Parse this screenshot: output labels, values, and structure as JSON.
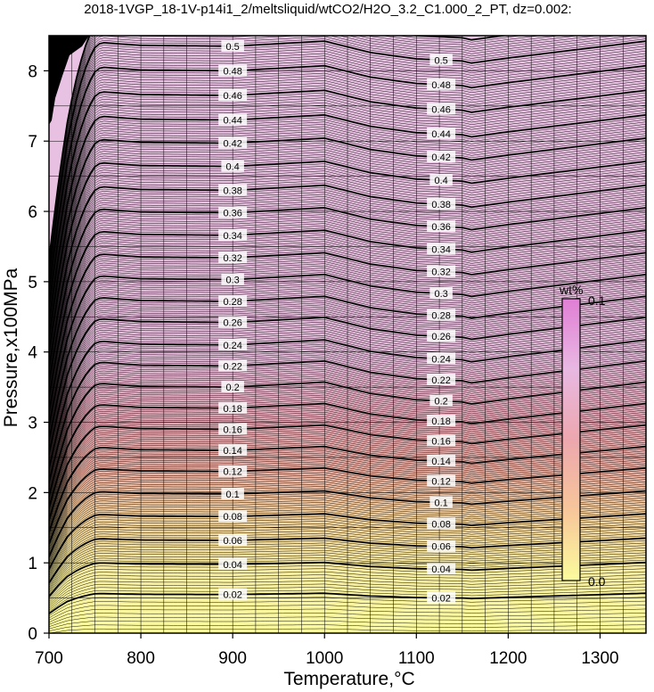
{
  "chart_data": {
    "type": "contour",
    "title": "2018-1VGP_18-1V-p14i1_2/meltsliquid/wtCO2/H2O_3.2_C1.000_2_PT, dz=0.002:",
    "xlabel": "Temperature,°C",
    "ylabel": "Pressure,x100MPa",
    "xlim": [
      700,
      1350
    ],
    "ylim": [
      0,
      8.5
    ],
    "x_ticks": [
      700,
      800,
      900,
      1000,
      1100,
      1200,
      1300
    ],
    "y_ticks": [
      0,
      1,
      2,
      3,
      4,
      5,
      6,
      7,
      8
    ],
    "x_tick_labels": [
      "700",
      "800",
      "900",
      "1000",
      "1100",
      "1200",
      "1300"
    ],
    "y_tick_labels": [
      "0",
      "1",
      "2",
      "3",
      "4",
      "5",
      "6",
      "7",
      "8"
    ],
    "grid": true,
    "contour_interval": 0.002,
    "labeled_levels": [
      0.02,
      0.04,
      0.06,
      0.08,
      0.1,
      0.12,
      0.14,
      0.16,
      0.18,
      0.2,
      0.22,
      0.24,
      0.26,
      0.28,
      0.3,
      0.32,
      0.34,
      0.36,
      0.38,
      0.4,
      0.42,
      0.44,
      0.46,
      0.48,
      0.5
    ],
    "labeled_level_texts": [
      "0.02",
      "0.04",
      "0.06",
      "0.08",
      "0.1",
      "0.12",
      "0.14",
      "0.16",
      "0.18",
      "0.2",
      "0.22",
      "0.24",
      "0.26",
      "0.28",
      "0.3",
      "0.32",
      "0.34",
      "0.36",
      "0.38",
      "0.4",
      "0.42",
      "0.44",
      "0.46",
      "0.48",
      "0.5"
    ],
    "level_pressure_at_900C": [
      0.55,
      0.98,
      1.32,
      1.66,
      1.98,
      2.3,
      2.6,
      2.9,
      3.2,
      3.5,
      3.8,
      4.1,
      4.42,
      4.72,
      5.03,
      5.34,
      5.66,
      5.98,
      6.3,
      6.64,
      6.97,
      7.3,
      7.65,
      8.0,
      8.35
    ],
    "profile_temperatures": [
      700,
      720,
      750,
      780,
      800,
      900,
      1000,
      1050,
      1100,
      1150,
      1160,
      1200,
      1350
    ],
    "profile_offsets": [
      -0.55,
      -0.1,
      0.1,
      0.05,
      0.02,
      0.0,
      0.12,
      -0.15,
      -0.3,
      -0.35,
      -0.4,
      -0.28,
      0.12
    ],
    "colorbar": {
      "title": "wt%",
      "max_label": "0.1",
      "min_label": "0.0",
      "range": [
        0.0,
        0.1
      ],
      "colors": [
        "#fbfb9d",
        "#f7c69a",
        "#eca7ae",
        "#e8b8e2",
        "#e07ed5"
      ]
    },
    "line_color": "#000000",
    "background_color": "#e8c2e2"
  }
}
